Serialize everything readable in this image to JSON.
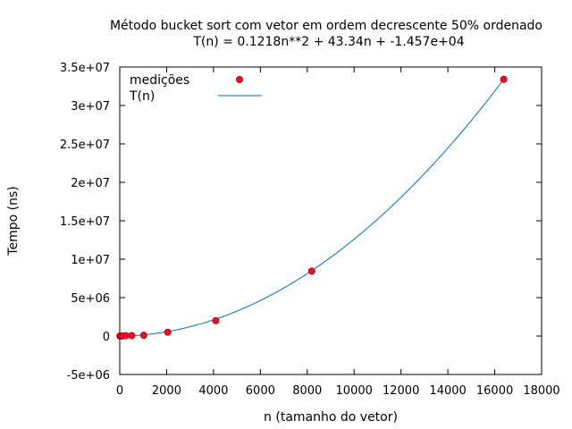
{
  "chart_data": {
    "type": "scatter",
    "title": "Método bucket sort com vetor em ordem decrescente 50% ordenado",
    "subtitle": "T(n) = 0.1218n**2 + 43.34n + -1.457e+04",
    "xlabel": "n (tamanho do vetor)",
    "ylabel": "Tempo (ns)",
    "xlim": [
      0,
      18000
    ],
    "ylim": [
      -5000000,
      35000000
    ],
    "x_ticks": [
      0,
      2000,
      4000,
      6000,
      8000,
      10000,
      12000,
      14000,
      16000,
      18000
    ],
    "x_tick_labels": [
      "0",
      "2000",
      "4000",
      "6000",
      "8000",
      "10000",
      "12000",
      "14000",
      "16000",
      "18000"
    ],
    "y_ticks": [
      -5000000,
      0,
      5000000,
      10000000,
      15000000,
      20000000,
      25000000,
      30000000,
      35000000
    ],
    "y_tick_labels": [
      "-5e+06",
      "0",
      "5e+06",
      "1e+07",
      "1.5e+07",
      "2e+07",
      "2.5e+07",
      "3e+07",
      "3.5e+07"
    ],
    "grid": false,
    "legend_position": "top-left",
    "series": [
      {
        "name": "medições",
        "kind": "points",
        "color": "#e8112d",
        "x": [
          8,
          16,
          32,
          64,
          128,
          256,
          512,
          1024,
          2048,
          4096,
          8192,
          16384
        ],
        "y": [
          500,
          1200,
          3000,
          8000,
          20000,
          50000,
          60000,
          100000,
          500000,
          2000000,
          8450000,
          33400000
        ]
      },
      {
        "name": "T(n)",
        "kind": "curve",
        "color": "#0072bd",
        "coefficients": {
          "a": 0.1218,
          "b": 43.34,
          "c": -14570
        },
        "x_range": [
          0,
          16384
        ]
      }
    ]
  }
}
